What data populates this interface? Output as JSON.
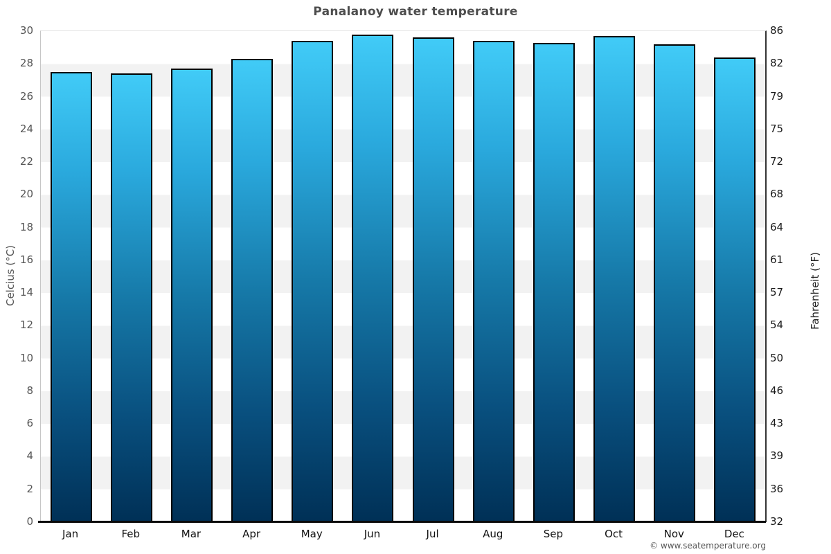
{
  "chart_data": {
    "type": "bar",
    "title": "Panalanoy water temperature",
    "categories": [
      "Jan",
      "Feb",
      "Mar",
      "Apr",
      "May",
      "Jun",
      "Jul",
      "Aug",
      "Sep",
      "Oct",
      "Nov",
      "Dec"
    ],
    "values": [
      27.5,
      27.4,
      27.7,
      28.3,
      29.4,
      29.8,
      29.6,
      29.4,
      29.3,
      29.7,
      29.2,
      28.4
    ],
    "unit": "°C",
    "ylabel_left": "Celcius (°C)",
    "ylabel_right": "Fahrenheit (°F)",
    "ylim": [
      0,
      30
    ],
    "celsius_ticks": [
      30,
      28,
      26,
      24,
      22,
      20,
      18,
      16,
      14,
      12,
      10,
      8,
      6,
      4,
      2,
      0
    ],
    "fahrenheit_ticks": [
      86,
      82,
      79,
      75,
      72,
      68,
      64,
      61,
      57,
      54,
      50,
      46,
      43,
      39,
      36,
      32
    ],
    "legend": "none",
    "grid": "alternating horizontal bands every 2°C"
  },
  "footer": {
    "attribution": "© www.seatemperature.org"
  },
  "colors": {
    "background": "#ffffff",
    "stripe_white": "#ffffff",
    "stripe_gray": "#f2f2f2",
    "bar_gradient": [
      "#41cbf7",
      "#2aa9dd",
      "#1679a8",
      "#09507f",
      "#003056"
    ],
    "bar_border": "#000000",
    "title_text": "#4d4d4d",
    "left_tick_text": "#555555",
    "right_tick_text": "#1a1a1a",
    "month_text": "#111111",
    "footer_text": "#555555"
  }
}
